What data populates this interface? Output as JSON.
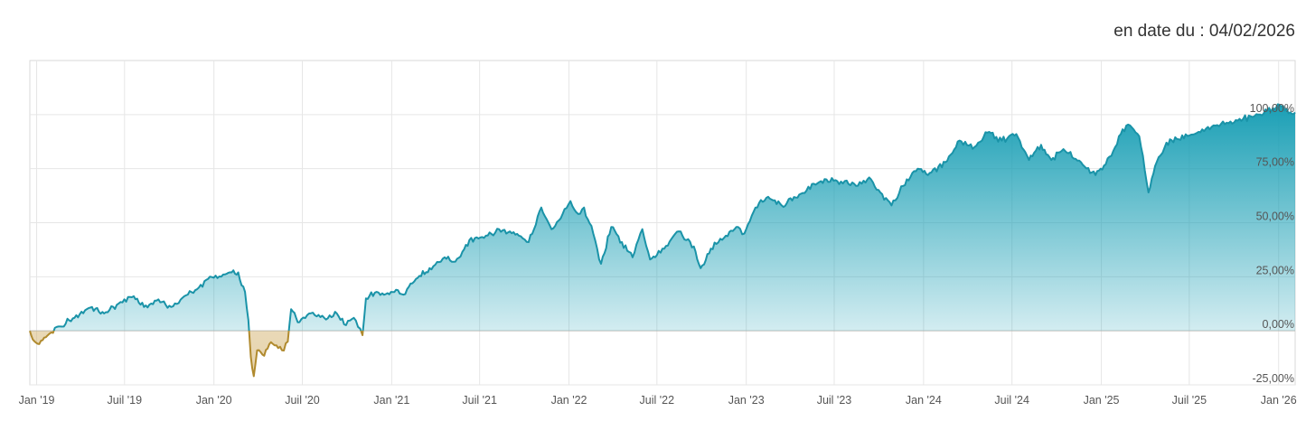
{
  "header": {
    "date_label": "en date du : 04/02/2026"
  },
  "colors": {
    "positive_line": "#1a93a8",
    "negative_line": "#b08a2e",
    "positive_fill": "#1a9fb5",
    "negative_fill": "#d2b06a",
    "grid": "#e6e6e6"
  },
  "chart_data": {
    "type": "area",
    "title": "",
    "xlabel": "",
    "ylabel": "",
    "xlim": [
      "2018-12-18",
      "2026-02-04"
    ],
    "ylim": [
      -25,
      125
    ],
    "grid": true,
    "legend": "none",
    "x_ticks": [
      {
        "date": "2019-01-01",
        "label": "Jan '19"
      },
      {
        "date": "2019-07-01",
        "label": "Juil '19"
      },
      {
        "date": "2020-01-01",
        "label": "Jan '20"
      },
      {
        "date": "2020-07-01",
        "label": "Juil '20"
      },
      {
        "date": "2021-01-01",
        "label": "Jan '21"
      },
      {
        "date": "2021-07-01",
        "label": "Juil '21"
      },
      {
        "date": "2022-01-01",
        "label": "Jan '22"
      },
      {
        "date": "2022-07-01",
        "label": "Juil '22"
      },
      {
        "date": "2023-01-01",
        "label": "Jan '23"
      },
      {
        "date": "2023-07-01",
        "label": "Juil '23"
      },
      {
        "date": "2024-01-01",
        "label": "Jan '24"
      },
      {
        "date": "2024-07-01",
        "label": "Juil '24"
      },
      {
        "date": "2025-01-01",
        "label": "Jan '25"
      },
      {
        "date": "2025-07-01",
        "label": "Juil '25"
      },
      {
        "date": "2026-01-01",
        "label": "Jan '26"
      }
    ],
    "y_ticks": [
      {
        "value": 100,
        "label": "100,00%"
      },
      {
        "value": 75,
        "label": "75,00%"
      },
      {
        "value": 50,
        "label": "50,00%"
      },
      {
        "value": 25,
        "label": "25,00%"
      },
      {
        "value": 0,
        "label": "0,00%"
      },
      {
        "value": -25,
        "label": "-25,00%"
      }
    ],
    "series": [
      {
        "values": [
          [
            "2018-12-18",
            0
          ],
          [
            "2018-12-24",
            -4
          ],
          [
            "2019-01-03",
            -6
          ],
          [
            "2019-01-20",
            -3
          ],
          [
            "2019-02-15",
            2
          ],
          [
            "2019-03-20",
            6
          ],
          [
            "2019-04-25",
            11
          ],
          [
            "2019-05-20",
            8
          ],
          [
            "2019-06-15",
            12
          ],
          [
            "2019-07-20",
            16
          ],
          [
            "2019-08-10",
            11
          ],
          [
            "2019-09-05",
            14
          ],
          [
            "2019-10-05",
            11
          ],
          [
            "2019-11-01",
            16
          ],
          [
            "2019-12-01",
            20
          ],
          [
            "2019-12-20",
            24
          ],
          [
            "2020-01-20",
            26
          ],
          [
            "2020-02-10",
            28
          ],
          [
            "2020-02-20",
            27
          ],
          [
            "2020-03-05",
            18
          ],
          [
            "2020-03-12",
            5
          ],
          [
            "2020-03-17",
            -12
          ],
          [
            "2020-03-23",
            -21
          ],
          [
            "2020-03-30",
            -9
          ],
          [
            "2020-04-10",
            -11
          ],
          [
            "2020-05-01",
            -6
          ],
          [
            "2020-05-20",
            -9
          ],
          [
            "2020-06-01",
            -5
          ],
          [
            "2020-06-08",
            10
          ],
          [
            "2020-06-25",
            4
          ],
          [
            "2020-07-15",
            8
          ],
          [
            "2020-08-15",
            6
          ],
          [
            "2020-09-10",
            8
          ],
          [
            "2020-09-25",
            3
          ],
          [
            "2020-10-15",
            6
          ],
          [
            "2020-10-28",
            1
          ],
          [
            "2020-11-02",
            -2
          ],
          [
            "2020-11-09",
            15
          ],
          [
            "2020-12-01",
            18
          ],
          [
            "2020-12-20",
            17
          ],
          [
            "2021-01-10",
            19
          ],
          [
            "2021-01-29",
            17
          ],
          [
            "2021-02-20",
            24
          ],
          [
            "2021-03-20",
            29
          ],
          [
            "2021-04-20",
            34
          ],
          [
            "2021-05-12",
            32
          ],
          [
            "2021-06-10",
            42
          ],
          [
            "2021-07-10",
            43
          ],
          [
            "2021-08-10",
            47
          ],
          [
            "2021-09-20",
            44
          ],
          [
            "2021-10-10",
            41
          ],
          [
            "2021-11-05",
            57
          ],
          [
            "2021-11-26",
            47
          ],
          [
            "2021-12-15",
            52
          ],
          [
            "2022-01-04",
            60
          ],
          [
            "2022-01-20",
            54
          ],
          [
            "2022-02-01",
            57
          ],
          [
            "2022-02-20",
            45
          ],
          [
            "2022-03-08",
            31
          ],
          [
            "2022-03-29",
            48
          ],
          [
            "2022-04-20",
            41
          ],
          [
            "2022-05-12",
            34
          ],
          [
            "2022-06-01",
            47
          ],
          [
            "2022-06-17",
            33
          ],
          [
            "2022-07-01",
            35
          ],
          [
            "2022-08-15",
            46
          ],
          [
            "2022-09-15",
            39
          ],
          [
            "2022-09-29",
            29
          ],
          [
            "2022-10-20",
            38
          ],
          [
            "2022-11-20",
            44
          ],
          [
            "2022-12-15",
            48
          ],
          [
            "2022-12-28",
            45
          ],
          [
            "2023-01-20",
            57
          ],
          [
            "2023-02-15",
            62
          ],
          [
            "2023-03-15",
            58
          ],
          [
            "2023-04-20",
            63
          ],
          [
            "2023-05-20",
            68
          ],
          [
            "2023-06-15",
            70
          ],
          [
            "2023-07-15",
            69
          ],
          [
            "2023-08-15",
            67
          ],
          [
            "2023-09-15",
            70
          ],
          [
            "2023-10-04",
            64
          ],
          [
            "2023-10-27",
            58
          ],
          [
            "2023-11-20",
            67
          ],
          [
            "2023-12-20",
            75
          ],
          [
            "2024-01-10",
            72
          ],
          [
            "2024-02-15",
            78
          ],
          [
            "2024-03-15",
            88
          ],
          [
            "2024-04-15",
            85
          ],
          [
            "2024-05-15",
            92
          ],
          [
            "2024-06-10",
            88
          ],
          [
            "2024-07-10",
            91
          ],
          [
            "2024-08-05",
            79
          ],
          [
            "2024-08-30",
            86
          ],
          [
            "2024-09-20",
            79
          ],
          [
            "2024-10-15",
            84
          ],
          [
            "2024-11-20",
            78
          ],
          [
            "2024-12-20",
            72
          ],
          [
            "2025-01-10",
            77
          ],
          [
            "2025-02-10",
            91
          ],
          [
            "2025-03-01",
            95
          ],
          [
            "2025-03-20",
            90
          ],
          [
            "2025-04-08",
            64
          ],
          [
            "2025-04-25",
            78
          ],
          [
            "2025-05-15",
            87
          ],
          [
            "2025-06-20",
            89
          ],
          [
            "2025-07-20",
            92
          ],
          [
            "2025-08-20",
            95
          ],
          [
            "2025-09-20",
            96
          ],
          [
            "2025-10-20",
            98
          ],
          [
            "2025-11-20",
            100
          ],
          [
            "2025-12-20",
            103
          ],
          [
            "2026-01-10",
            104
          ],
          [
            "2026-01-25",
            101
          ],
          [
            "2026-02-04",
            101
          ]
        ]
      }
    ]
  }
}
